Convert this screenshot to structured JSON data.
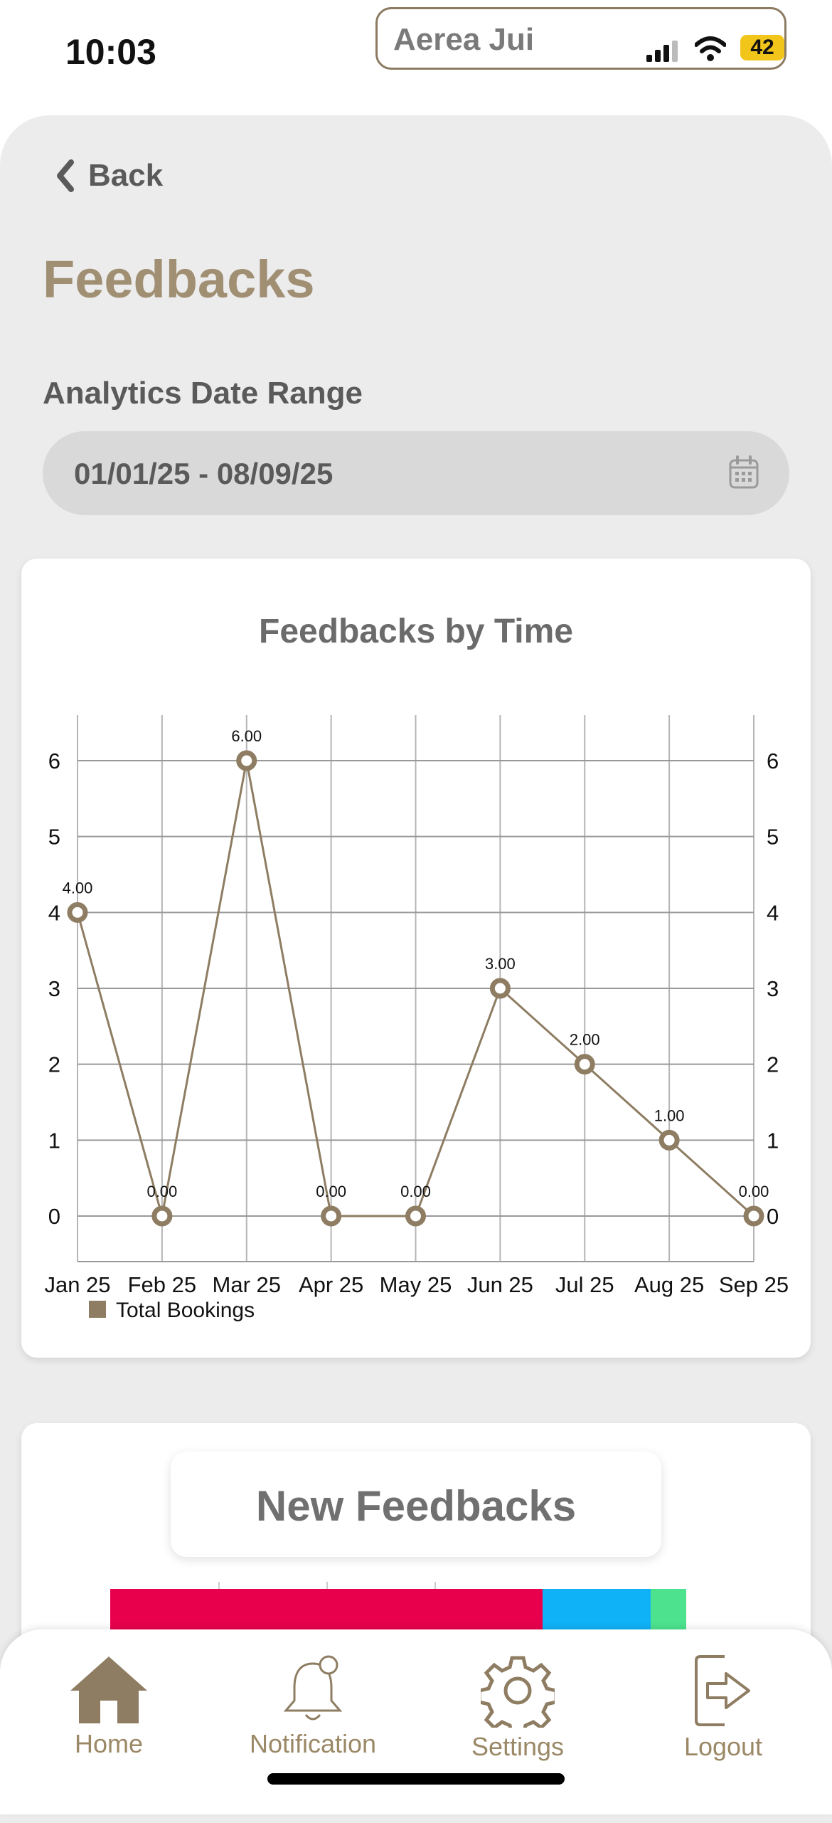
{
  "status_bar": {
    "time": "10:03",
    "island_name": "Aerea Jui",
    "battery": "42"
  },
  "header": {
    "back_label": "Back",
    "title": "Feedbacks"
  },
  "date_range": {
    "label": "Analytics Date Range",
    "value": "01/01/25 - 08/09/25"
  },
  "chart": {
    "title": "Feedbacks by Time",
    "legend": "Total Bookings"
  },
  "chart_data": {
    "type": "line",
    "title": "Feedbacks by Time",
    "categories": [
      "Jan 25",
      "Feb 25",
      "Mar 25",
      "Apr 25",
      "May 25",
      "Jun 25",
      "Jul 25",
      "Aug 25",
      "Sep 25"
    ],
    "series": [
      {
        "name": "Total Bookings",
        "values": [
          4,
          0,
          6,
          0,
          0,
          3,
          2,
          1,
          0
        ],
        "color": "#8e7d62"
      }
    ],
    "data_labels": [
      "4.00",
      "0.00",
      "6.00",
      "0.00",
      "0.00",
      "3.00",
      "2.00",
      "1.00",
      "0.00"
    ],
    "y_ticks": [
      "0",
      "1",
      "2",
      "3",
      "4",
      "5",
      "6"
    ],
    "ylim": [
      -0.6,
      6.6
    ],
    "grid": true,
    "legend_position": "bottom-left"
  },
  "new_feedbacks": {
    "title": "New Feedbacks",
    "segments": [
      {
        "value": 4,
        "color": "#e8004c"
      },
      {
        "value": 1,
        "color": "#10b2f7"
      },
      {
        "value": 0.33,
        "color": "#4de38e"
      }
    ]
  },
  "nav": [
    {
      "label": "Home",
      "icon": "home-icon"
    },
    {
      "label": "Notification",
      "icon": "bell-icon"
    },
    {
      "label": "Settings",
      "icon": "gear-icon"
    },
    {
      "label": "Logout",
      "icon": "logout-icon"
    }
  ],
  "colors": {
    "accent": "#a08f73",
    "line": "#8e7d62",
    "background": "#ececec"
  }
}
